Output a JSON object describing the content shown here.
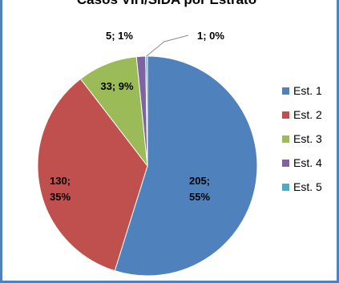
{
  "chart_data": {
    "type": "pie",
    "title": "Casos VIH/SIDA por Estrato",
    "categories": [
      "Est. 1",
      "Est. 2",
      "Est. 3",
      "Est. 4",
      "Est. 5"
    ],
    "values": [
      205,
      130,
      33,
      5,
      1
    ],
    "percent_labels": [
      "55%",
      "35%",
      "9%",
      "1%",
      "0%"
    ],
    "data_labels": [
      "205; 55%",
      "130; 35%",
      "33; 9%",
      "5; 1%",
      "1; 0%"
    ],
    "colors": [
      "#4f81bd",
      "#c0504d",
      "#9bbb59",
      "#8064a2",
      "#4bacc6"
    ],
    "legend_position": "right",
    "start_angle_deg": 0,
    "direction": "clockwise"
  }
}
